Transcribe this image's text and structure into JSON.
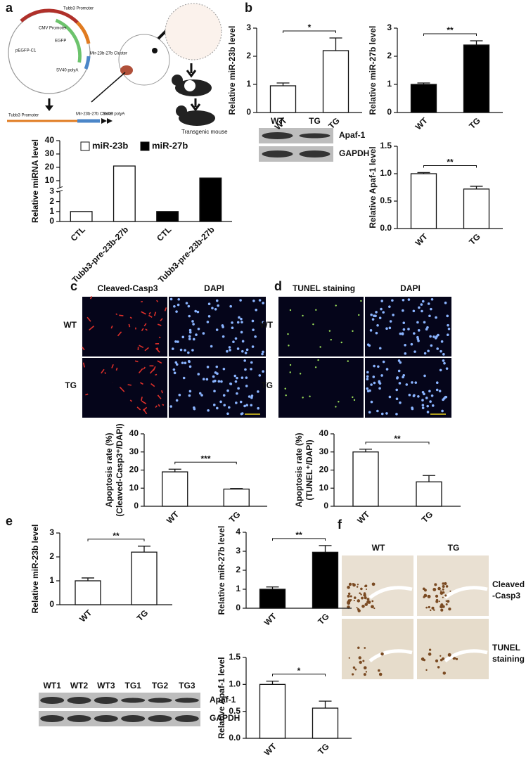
{
  "panel_labels": [
    "a",
    "b",
    "c",
    "d",
    "e",
    "f"
  ],
  "diagram": {
    "plasmid": "pEGFP-C1",
    "labels": [
      "Tubb3 Promoter",
      "CMV Promoter",
      "EGFP",
      "Mir-23b-27b Cluster",
      "SV40 polyA"
    ],
    "linear": [
      "Tubb3 Promoter",
      "Mir-23b-27b Cluster",
      "SV40 polyA"
    ],
    "mouse": "Transgenic mouse"
  },
  "blot_b": {
    "lanes": [
      "WT",
      "TG"
    ],
    "rows": [
      "Apaf-1",
      "GAPDH"
    ]
  },
  "micro_c": {
    "columns": [
      "Cleaved-Casp3",
      "DAPI"
    ],
    "rows": [
      "WT",
      "TG"
    ]
  },
  "micro_d": {
    "columns": [
      "TUNEL staining",
      "DAPI"
    ],
    "rows": [
      "WT",
      "TG"
    ]
  },
  "blot_e": {
    "lanes": [
      "WT1",
      "WT2",
      "WT3",
      "TG1",
      "TG2",
      "TG3"
    ],
    "rows": [
      "Apaf-1",
      "GAPDH"
    ]
  },
  "histo_f": {
    "columns": [
      "WT",
      "TG"
    ],
    "rows": [
      [
        "Cleaved",
        "-Casp3"
      ],
      [
        "TUNEL",
        "staining"
      ]
    ]
  },
  "chart_data": [
    {
      "type": "bar",
      "ylabel": [
        "Relative miRNA level"
      ],
      "categories": [
        "CTL",
        "Tubb3-pre-23b-27b",
        "CTL",
        "Tubb3-pre-23b-27b"
      ],
      "series": [
        {
          "name": "miR-23b",
          "color": "#ffffff",
          "values": [
            1,
            21,
            null,
            null
          ]
        },
        {
          "name": "miR-27b",
          "color": "#000000",
          "values": [
            null,
            null,
            1,
            12
          ]
        }
      ],
      "ylim": [
        0,
        40
      ],
      "ybreak": [
        3,
        5
      ],
      "yticks": [
        0,
        1,
        2,
        3,
        10,
        20,
        30,
        40
      ],
      "legend": "top"
    },
    {
      "type": "bar",
      "ylabel": [
        "Relative miR-23b level"
      ],
      "categories": [
        "WT",
        "TG"
      ],
      "values": [
        0.95,
        2.2
      ],
      "errors": [
        0.1,
        0.45
      ],
      "color": "#ffffff",
      "ylim": [
        0,
        3
      ],
      "yticks": [
        0,
        1,
        2,
        3
      ],
      "significance": "*"
    },
    {
      "type": "bar",
      "ylabel": [
        "Relative miR-27b  level"
      ],
      "categories": [
        "WT",
        "TG"
      ],
      "values": [
        1.0,
        2.4
      ],
      "errors": [
        0.05,
        0.15
      ],
      "color": "#000000",
      "ylim": [
        0,
        3
      ],
      "yticks": [
        0,
        1,
        2,
        3
      ],
      "significance": "**"
    },
    {
      "type": "bar",
      "ylabel": [
        "Relative Apaf-1 level"
      ],
      "categories": [
        "WT",
        "TG"
      ],
      "values": [
        1.0,
        0.72
      ],
      "errors": [
        0.02,
        0.05
      ],
      "color": "#ffffff",
      "ylim": [
        0,
        1.5
      ],
      "yticks": [
        {
          "value": 0,
          "label": "0.0"
        },
        {
          "value": 0.5,
          "label": "0.5"
        },
        {
          "value": 1,
          "label": "1.0"
        },
        {
          "value": 1.5,
          "label": "1.5"
        }
      ],
      "significance": "**"
    },
    {
      "type": "bar",
      "ylabel": [
        "Apoptosis rate (%)",
        "(Cleaved-Casp3⁺/DAPI)"
      ],
      "categories": [
        "WT",
        "TG"
      ],
      "values": [
        19,
        9.5
      ],
      "errors": [
        1.5,
        0.3
      ],
      "color": "#ffffff",
      "ylim": [
        0,
        40
      ],
      "yticks": [
        0,
        10,
        20,
        30,
        40
      ],
      "significance": "***"
    },
    {
      "type": "bar",
      "ylabel": [
        "Apoptosis rate (%)",
        "(TUNEL⁺/DAPI)"
      ],
      "categories": [
        "WT",
        "TG"
      ],
      "values": [
        30,
        13.5
      ],
      "errors": [
        1.5,
        3.5
      ],
      "color": "#ffffff",
      "ylim": [
        0,
        40
      ],
      "yticks": [
        0,
        10,
        20,
        30,
        40
      ],
      "significance": "**"
    },
    {
      "type": "bar",
      "ylabel": [
        "Relative miR-23b level"
      ],
      "categories": [
        "WT",
        "TG"
      ],
      "values": [
        1.0,
        2.2
      ],
      "errors": [
        0.12,
        0.25
      ],
      "color": "#ffffff",
      "ylim": [
        0,
        3
      ],
      "yticks": [
        0,
        1,
        2,
        3
      ],
      "significance": "**"
    },
    {
      "type": "bar",
      "ylabel": [
        "Relative miR-27b level"
      ],
      "categories": [
        "WT",
        "TG"
      ],
      "values": [
        1.0,
        2.95
      ],
      "errors": [
        0.12,
        0.35
      ],
      "color": "#000000",
      "ylim": [
        0,
        4
      ],
      "yticks": [
        0,
        1,
        2,
        3,
        4
      ],
      "significance": "**"
    },
    {
      "type": "bar",
      "ylabel": [
        "Relative Apaf-1 level"
      ],
      "categories": [
        "WT",
        "TG"
      ],
      "values": [
        1.0,
        0.56
      ],
      "errors": [
        0.06,
        0.13
      ],
      "color": "#ffffff",
      "ylim": [
        0,
        1.5
      ],
      "yticks": [
        {
          "value": 0,
          "label": "0.0"
        },
        {
          "value": 0.5,
          "label": "0.5"
        },
        {
          "value": 1,
          "label": "1.0"
        },
        {
          "value": 1.5,
          "label": "1.5"
        }
      ],
      "significance": "*"
    }
  ]
}
